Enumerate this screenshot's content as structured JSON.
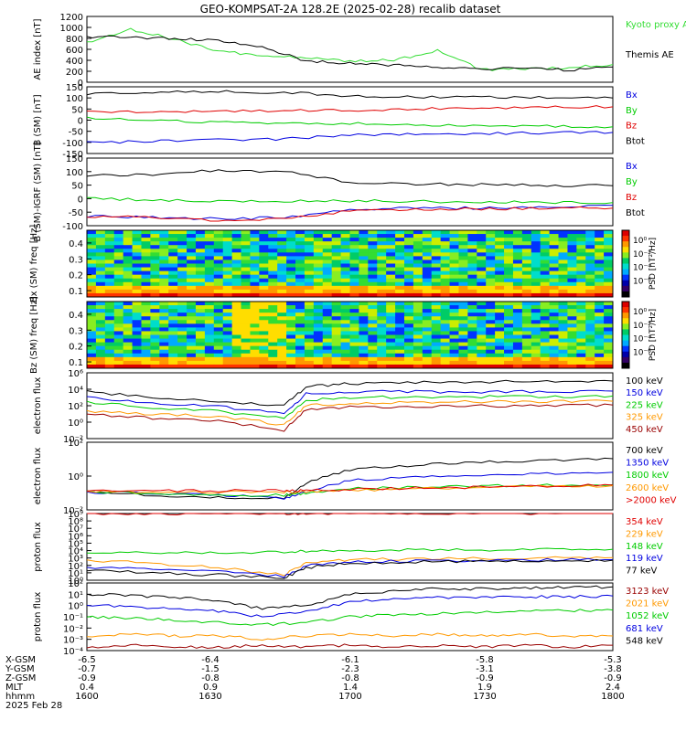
{
  "title": "GEO-KOMPSAT-2A 128.2E (2025-02-28) recalib dataset",
  "colors": {
    "black": "#000000",
    "red": "#e00000",
    "green": "#00cc00",
    "blue": "#0000e0",
    "lightgreen": "#33dd33",
    "orange": "#ff9900",
    "darkred": "#990000",
    "cyan": "#00aaff"
  },
  "chart_data": [
    {
      "type": "line",
      "panel": "ae",
      "ylabel": "AE index [nT]",
      "yticks": [
        "1200",
        "1000",
        "800",
        "600",
        "400",
        "200",
        "0"
      ],
      "ylim": [
        0,
        1300
      ],
      "x": [
        1600,
        1610,
        1620,
        1630,
        1640,
        1650,
        1700,
        1710,
        1720,
        1730,
        1740,
        1750,
        1800
      ],
      "series": [
        {
          "name": "Kyoto proxy AE",
          "color": "#33dd33",
          "values": [
            780,
            1050,
            850,
            620,
            520,
            480,
            420,
            440,
            620,
            250,
            260,
            290,
            350
          ]
        },
        {
          "name": "Themis AE",
          "color": "#000000",
          "values": [
            900,
            880,
            870,
            820,
            700,
            420,
            380,
            340,
            280,
            260,
            300,
            240,
            300
          ]
        }
      ]
    },
    {
      "type": "line",
      "panel": "b_sm",
      "ylabel": "B (SM) [nT]",
      "yticks": [
        "150",
        "100",
        "50",
        "0",
        "-50",
        "-100",
        "-150"
      ],
      "ylim": [
        -150,
        150
      ],
      "x": [
        1600,
        1615,
        1630,
        1645,
        1700,
        1715,
        1730,
        1745,
        1800
      ],
      "series": [
        {
          "name": "Bx",
          "color": "#0000e0",
          "values": [
            -100,
            -95,
            -90,
            -85,
            -65,
            -62,
            -60,
            -58,
            -55
          ]
        },
        {
          "name": "By",
          "color": "#00cc00",
          "values": [
            10,
            0,
            -10,
            -12,
            -15,
            -20,
            -25,
            -28,
            -30
          ]
        },
        {
          "name": "Bz",
          "color": "#e00000",
          "values": [
            35,
            38,
            40,
            42,
            45,
            50,
            55,
            58,
            60
          ]
        },
        {
          "name": "Btot",
          "color": "#000000",
          "values": [
            120,
            125,
            128,
            125,
            110,
            105,
            105,
            103,
            100
          ]
        }
      ]
    },
    {
      "type": "line",
      "panel": "b_igrf",
      "ylabel": "B (SM)-IGRF (SM) [nT]",
      "yticks": [
        "150",
        "100",
        "50",
        "0",
        "-50",
        "-100"
      ],
      "ylim": [
        -100,
        150
      ],
      "x": [
        1600,
        1615,
        1630,
        1645,
        1700,
        1715,
        1730,
        1745,
        1800
      ],
      "series": [
        {
          "name": "Bx",
          "color": "#0000e0",
          "values": [
            -65,
            -70,
            -75,
            -70,
            -40,
            -35,
            -35,
            -30,
            -25
          ]
        },
        {
          "name": "By",
          "color": "#00cc00",
          "values": [
            0,
            -5,
            -8,
            -10,
            -8,
            -10,
            -12,
            -15,
            -15
          ]
        },
        {
          "name": "Bz",
          "color": "#e00000",
          "values": [
            -65,
            -70,
            -80,
            -75,
            -45,
            -40,
            -38,
            -36,
            -35
          ]
        },
        {
          "name": "Btot",
          "color": "#000000",
          "values": [
            85,
            90,
            105,
            100,
            60,
            55,
            52,
            50,
            48
          ]
        }
      ]
    },
    {
      "type": "heatmap",
      "panel": "bx_spec",
      "ylabel": "Bx (SM) freq [Hz]",
      "yticks": [
        "0.4",
        "0.3",
        "0.2",
        "0.1"
      ],
      "colorbar_label": "PSD [nT²/Hz]",
      "colorbar_ticks": [
        "10⁰",
        "10⁻²",
        "10⁻⁴",
        "10⁻⁶"
      ]
    },
    {
      "type": "heatmap",
      "panel": "bz_spec",
      "ylabel": "Bz (SM) freq [Hz]",
      "yticks": [
        "0.4",
        "0.3",
        "0.2",
        "0.1"
      ],
      "colorbar_label": "PSD [nT²/Hz]",
      "colorbar_ticks": [
        "10⁰",
        "10⁻²",
        "10⁻⁴",
        "10⁻⁶"
      ]
    },
    {
      "type": "line",
      "panel": "e_flux_low",
      "ylabel": "electron flux",
      "yticks": [
        "10⁶",
        "10⁴",
        "10²",
        "10⁰",
        "10⁻²"
      ],
      "ylog": [
        -2,
        6
      ],
      "x": [
        1600,
        1615,
        1630,
        1645,
        1650,
        1700,
        1715,
        1730,
        1745,
        1800
      ],
      "series": [
        {
          "name": "100 keV",
          "color": "#000000",
          "values": [
            5000,
            1000,
            300,
            100,
            20000,
            50000,
            70000,
            80000,
            90000,
            100000
          ]
        },
        {
          "name": "150 keV",
          "color": "#0000e0",
          "values": [
            1000,
            200,
            80,
            10,
            3000,
            5000,
            5000,
            5000,
            5000,
            6000
          ]
        },
        {
          "name": "225 keV",
          "color": "#00cc00",
          "values": [
            300,
            60,
            20,
            3,
            500,
            1000,
            1100,
            1200,
            1300,
            1500
          ]
        },
        {
          "name": "325 keV",
          "color": "#ff9900",
          "values": [
            20,
            10,
            5,
            0.5,
            100,
            200,
            250,
            300,
            320,
            350
          ]
        },
        {
          "name": "450 keV",
          "color": "#990000",
          "values": [
            10,
            3,
            1.5,
            0.1,
            30,
            70,
            80,
            90,
            100,
            120
          ]
        }
      ]
    },
    {
      "type": "line",
      "panel": "e_flux_high",
      "ylabel": "electron flux",
      "yticks": [
        "10²",
        "10⁰",
        "10⁻²"
      ],
      "ylog": [
        -2.5,
        2
      ],
      "x": [
        1600,
        1615,
        1630,
        1645,
        1650,
        1700,
        1715,
        1730,
        1745,
        1800
      ],
      "series": [
        {
          "name": "700 keV",
          "color": "#000000",
          "values": [
            0.05,
            0.03,
            0.02,
            0.02,
            0.2,
            1.5,
            3,
            5,
            6,
            8
          ]
        },
        {
          "name": "1350 keV",
          "color": "#0000e0",
          "values": [
            0.05,
            0.04,
            0.03,
            0.02,
            0.05,
            0.3,
            0.5,
            0.6,
            0.8,
            1.0
          ]
        },
        {
          "name": "1800 keV",
          "color": "#00cc00",
          "values": [
            0.05,
            0.04,
            0.03,
            0.03,
            0.04,
            0.08,
            0.1,
            0.12,
            0.14,
            0.15
          ]
        },
        {
          "name": "2600 keV",
          "color": "#ff9900",
          "values": [
            0.05,
            0.05,
            0.05,
            0.05,
            0.05,
            0.06,
            0.08,
            0.1,
            0.12,
            0.13
          ]
        },
        {
          "name": ">2000 keV",
          "color": "#e00000",
          "values": [
            0.06,
            0.06,
            0.06,
            0.06,
            0.06,
            0.07,
            0.09,
            0.1,
            0.12,
            0.14
          ]
        }
      ]
    },
    {
      "type": "line",
      "panel": "p_flux_low",
      "ylabel": "proton flux",
      "yticks": [
        "10⁹",
        "10⁸",
        "10⁷",
        "10⁶",
        "10⁵",
        "10⁴",
        "10³",
        "10²",
        "10¹",
        "10⁰"
      ],
      "ylog": [
        0,
        9
      ],
      "x": [
        1600,
        1615,
        1630,
        1645,
        1650,
        1700,
        1715,
        1730,
        1745,
        1800
      ],
      "series": [
        {
          "name": "354 keV",
          "color": "#e00000",
          "values": [
            1000000000,
            1000000000,
            1000000000,
            1000000000,
            1000000000,
            1000000000,
            1000000000,
            1000000000,
            1000000000,
            1000000000
          ]
        },
        {
          "name": "229 keV",
          "color": "#ff9900",
          "values": [
            500,
            200,
            50,
            5,
            200,
            600,
            800,
            900,
            1000,
            1100
          ]
        },
        {
          "name": "148 keV",
          "color": "#00cc00",
          "values": [
            5000,
            5000,
            6000,
            6000,
            8000,
            10000,
            12000,
            13000,
            14000,
            15000
          ]
        },
        {
          "name": "119 keV",
          "color": "#0000e0",
          "values": [
            50,
            30,
            20,
            3,
            100,
            300,
            400,
            500,
            550,
            600
          ]
        },
        {
          "name": "77 keV",
          "color": "#000000",
          "values": [
            20,
            10,
            5,
            2,
            50,
            200,
            300,
            400,
            450,
            500
          ]
        }
      ]
    },
    {
      "type": "line",
      "panel": "p_flux_high",
      "ylabel": "proton flux",
      "yticks": [
        "10²",
        "10¹",
        "10⁰",
        "10⁻¹",
        "10⁻²",
        "10⁻³",
        "10⁻⁴"
      ],
      "ylog": [
        -4,
        2
      ],
      "x": [
        1600,
        1610,
        1620,
        1630,
        1640,
        1650,
        1700,
        1710,
        1720,
        1730,
        1740,
        1750,
        1800
      ],
      "series": [
        {
          "name": "3123 keV",
          "color": "#990000",
          "values": [
            0.0002,
            0.0003,
            0.0002,
            0.0002,
            0.0003,
            0.0002,
            0.0003,
            0.0002,
            0.0003,
            0.0002,
            0.0003,
            0.0002,
            0.0003
          ]
        },
        {
          "name": "2021 keV",
          "color": "#ff9900",
          "values": [
            0.002,
            0.003,
            0.002,
            0.002,
            0.001,
            0.002,
            0.003,
            0.002,
            0.003,
            0.002,
            0.003,
            0.002,
            0.002
          ]
        },
        {
          "name": "1052 keV",
          "color": "#00cc00",
          "values": [
            0.1,
            0.08,
            0.05,
            0.03,
            0.02,
            0.03,
            0.1,
            0.15,
            0.2,
            0.25,
            0.3,
            0.35,
            0.4
          ]
        },
        {
          "name": "681 keV",
          "color": "#0000e0",
          "values": [
            1,
            0.8,
            0.5,
            0.3,
            0.1,
            0.3,
            2,
            4,
            5,
            5,
            6,
            6,
            7
          ]
        },
        {
          "name": "548 keV",
          "color": "#000000",
          "values": [
            10,
            8,
            5,
            3,
            0.5,
            1,
            10,
            20,
            30,
            30,
            35,
            40,
            45
          ]
        }
      ]
    }
  ],
  "xaxis": {
    "rows": [
      {
        "label": "X-GSM",
        "values": [
          "-6.5",
          "-6.4",
          "-6.1",
          "-5.8",
          "-5.3"
        ]
      },
      {
        "label": "Y-GSM",
        "values": [
          "-0.7",
          "-1.5",
          "-2.3",
          "-3.1",
          "-3.8"
        ]
      },
      {
        "label": "Z-GSM",
        "values": [
          "-0.9",
          "-0.8",
          "-0.8",
          "-0.9",
          "-0.9"
        ]
      },
      {
        "label": "MLT",
        "values": [
          "0.4",
          "0.9",
          "1.4",
          "1.9",
          "2.4"
        ]
      },
      {
        "label": "hhmm",
        "values": [
          "1600",
          "1630",
          "1700",
          "1730",
          "1800"
        ]
      }
    ],
    "date": "2025 Feb 28"
  }
}
